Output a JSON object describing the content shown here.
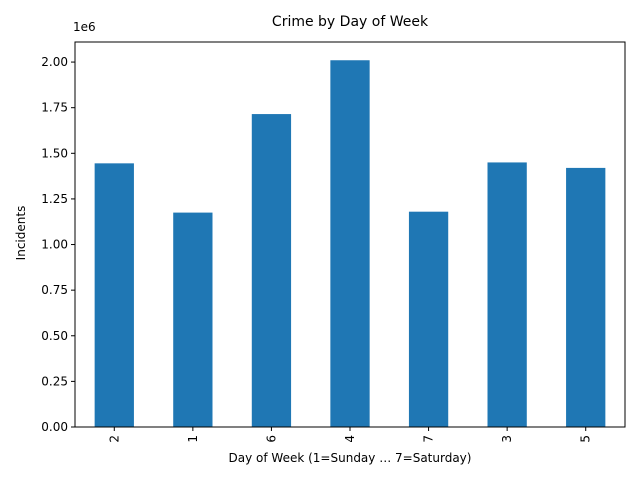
{
  "chart_data": {
    "type": "bar",
    "title": "Crime by Day of Week",
    "xlabel": "Day of Week (1=Sunday … 7=Saturday)",
    "ylabel": "Incidents",
    "y_offset_label": "1e6",
    "categories": [
      "2",
      "1",
      "6",
      "4",
      "7",
      "3",
      "5"
    ],
    "values": [
      1445000,
      1175000,
      1715000,
      2010000,
      1180000,
      1450000,
      1420000
    ],
    "ylim": [
      0,
      2110000
    ],
    "y_ticks": [
      0,
      250000,
      500000,
      750000,
      1000000,
      1250000,
      1500000,
      1750000,
      2000000
    ],
    "y_tick_labels": [
      "0.00",
      "0.25",
      "0.50",
      "0.75",
      "1.00",
      "1.25",
      "1.50",
      "1.75",
      "2.00"
    ],
    "bar_color": "#1f77b4",
    "grid": false,
    "legend": "none"
  }
}
